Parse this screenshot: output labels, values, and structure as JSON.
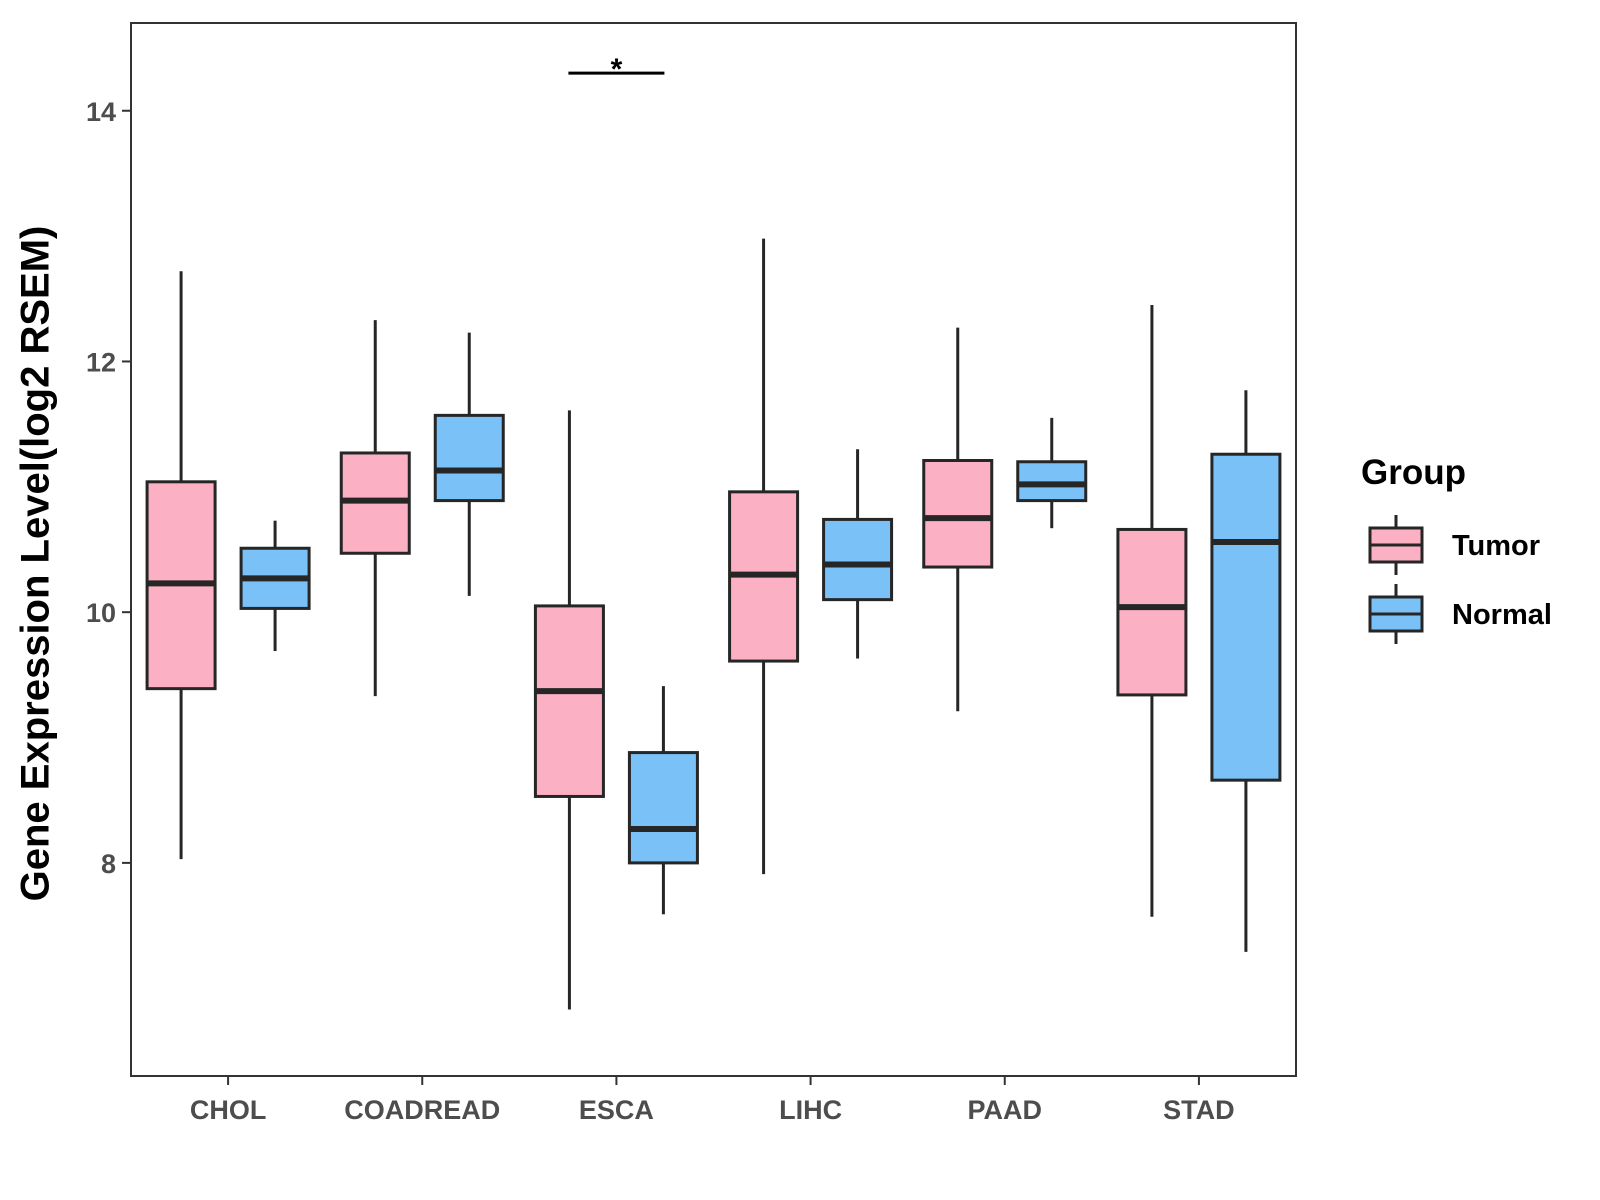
{
  "chart_data": {
    "type": "boxplot",
    "title": "",
    "xlabel": "",
    "ylabel": "Gene Expression Level(log2 RSEM)",
    "ylim": [
      6.3,
      14.7
    ],
    "yticks": [
      8,
      10,
      12,
      14
    ],
    "categories": [
      "CHOL",
      "COADREAD",
      "ESCA",
      "LIHC",
      "PAAD",
      "STAD"
    ],
    "legend": {
      "title": "Group",
      "position": "right"
    },
    "series": [
      {
        "name": "Tumor",
        "color": "#FBB1C3",
        "boxes": [
          {
            "whisker_low": 8.03,
            "q1": 9.39,
            "median": 10.23,
            "q3": 11.04,
            "whisker_high": 12.72
          },
          {
            "whisker_low": 9.33,
            "q1": 10.47,
            "median": 10.89,
            "q3": 11.27,
            "whisker_high": 12.33
          },
          {
            "whisker_low": 6.83,
            "q1": 8.53,
            "median": 9.37,
            "q3": 10.05,
            "whisker_high": 11.61
          },
          {
            "whisker_low": 7.91,
            "q1": 9.61,
            "median": 10.3,
            "q3": 10.96,
            "whisker_high": 12.98
          },
          {
            "whisker_low": 9.21,
            "q1": 10.36,
            "median": 10.75,
            "q3": 11.21,
            "whisker_high": 12.27
          },
          {
            "whisker_low": 7.57,
            "q1": 9.34,
            "median": 10.04,
            "q3": 10.66,
            "whisker_high": 12.45
          }
        ]
      },
      {
        "name": "Normal",
        "color": "#79C1F7",
        "boxes": [
          {
            "whisker_low": 9.69,
            "q1": 10.03,
            "median": 10.27,
            "q3": 10.51,
            "whisker_high": 10.73
          },
          {
            "whisker_low": 10.13,
            "q1": 10.89,
            "median": 11.13,
            "q3": 11.57,
            "whisker_high": 12.23
          },
          {
            "whisker_low": 7.59,
            "q1": 8.0,
            "median": 8.27,
            "q3": 8.88,
            "whisker_high": 9.41
          },
          {
            "whisker_low": 9.63,
            "q1": 10.1,
            "median": 10.38,
            "q3": 10.74,
            "whisker_high": 11.3
          },
          {
            "whisker_low": 10.67,
            "q1": 10.89,
            "median": 11.02,
            "q3": 11.2,
            "whisker_high": 11.55
          },
          {
            "whisker_low": 7.29,
            "q1": 8.66,
            "median": 10.56,
            "q3": 11.26,
            "whisker_high": 11.77
          }
        ]
      }
    ],
    "annotations": [
      {
        "category": "ESCA",
        "text": "*",
        "y": 14.3,
        "description": "significance bracket between Tumor and Normal"
      }
    ],
    "grid": false
  }
}
